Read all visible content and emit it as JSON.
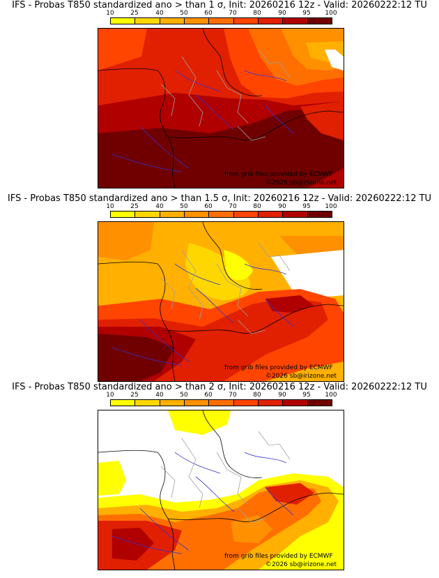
{
  "colorbar": {
    "ticks": [
      "10",
      "25",
      "40",
      "50",
      "60",
      "70",
      "80",
      "90",
      "95",
      "100"
    ],
    "colors": [
      "#ffff00",
      "#ffd700",
      "#ffb000",
      "#ff9000",
      "#ff6f00",
      "#ff4500",
      "#e02000",
      "#b00000",
      "#700000"
    ]
  },
  "palette": {
    "white": "#ffffff",
    "coast": "#000000",
    "rivers": "#3333cc",
    "borders": "#a0a0a0"
  },
  "panels": [
    {
      "title": "IFS - Probas T850  standardized ano > than 1 σ, Init: 20260216 12z - Valid: 20260222:12 TU",
      "credit1": "from grib files provided by ECMWF",
      "credit2": "©2026 sb@irizone.net"
    },
    {
      "title": "IFS - Probas T850  standardized ano > than 1.5 σ, Init: 20260216 12z - Valid: 20260222:12 TU",
      "credit1": "from grib files provided by ECMWF",
      "credit2": "©2026 sb@irizone.net"
    },
    {
      "title": "IFS - Probas T850  standardized ano > than 2 σ, Init: 20260216 12z - Valid: 20260222:12 TU",
      "credit1": "from grib files provided by ECMWF",
      "credit2": "©2026 sb@irizone.net"
    }
  ]
}
